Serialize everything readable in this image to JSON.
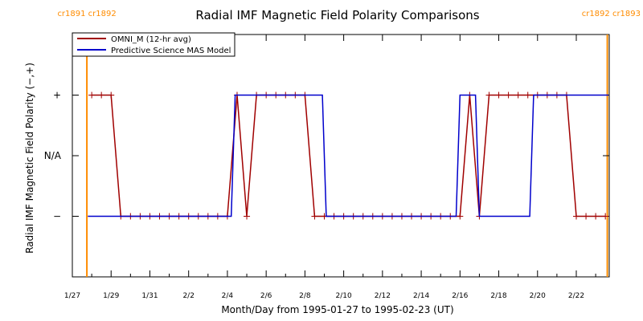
{
  "chart_data": {
    "type": "line",
    "title": "Radial IMF Magnetic Field Polarity Comparisons",
    "xlabel": "Month/Day from 1995-01-27 to 1995-02-23 (UT)",
    "ylabel": "Radial IMF Magnetic Field Polarity (−,+)",
    "x_unit": "days from 1995-01-27 00:00 UT",
    "xlim": [
      0,
      27.7
    ],
    "ylim": [
      -2,
      2
    ],
    "x_ticks": [
      {
        "x": 0,
        "label": "1/27"
      },
      {
        "x": 2,
        "label": "1/29"
      },
      {
        "x": 4,
        "label": "1/31"
      },
      {
        "x": 6,
        "label": "2/2"
      },
      {
        "x": 8,
        "label": "2/4"
      },
      {
        "x": 10,
        "label": "2/6"
      },
      {
        "x": 12,
        "label": "2/8"
      },
      {
        "x": 14,
        "label": "2/10"
      },
      {
        "x": 16,
        "label": "2/12"
      },
      {
        "x": 18,
        "label": "2/14"
      },
      {
        "x": 20,
        "label": "2/16"
      },
      {
        "x": 22,
        "label": "2/18"
      },
      {
        "x": 24,
        "label": "2/20"
      },
      {
        "x": 26,
        "label": "2/22"
      }
    ],
    "y_ticks": [
      {
        "y": 1,
        "label": "+"
      },
      {
        "y": 0,
        "label": "N/A"
      },
      {
        "y": -1,
        "label": "−"
      }
    ],
    "carrington_markers": [
      {
        "x": 0.75,
        "labels": [
          "cr1891",
          "cr1892"
        ],
        "color": "#ff8c00"
      },
      {
        "x": 27.6,
        "labels": [
          "cr1892",
          "cr1893"
        ],
        "color": "#ff8c00"
      }
    ],
    "legend": "top-left",
    "series": [
      {
        "name": "OMNI_M (12-hr avg)",
        "color": "#a00000",
        "markers": true,
        "x": [
          1.0,
          1.5,
          2.0,
          2.5,
          3.0,
          3.5,
          4.0,
          4.5,
          5.0,
          5.5,
          6.0,
          6.5,
          7.0,
          7.5,
          8.0,
          8.5,
          9.0,
          9.5,
          10.0,
          10.5,
          11.0,
          11.5,
          12.0,
          12.5,
          13.0,
          13.5,
          14.0,
          14.5,
          15.0,
          15.5,
          16.0,
          16.5,
          17.0,
          17.5,
          18.0,
          18.5,
          19.0,
          19.5,
          20.0,
          20.5,
          21.0,
          21.5,
          22.0,
          22.5,
          23.0,
          23.5,
          24.0,
          24.5,
          25.0,
          25.5,
          26.0,
          26.5,
          27.0,
          27.5
        ],
        "y": [
          1,
          1,
          1,
          -1,
          -1,
          -1,
          -1,
          -1,
          -1,
          -1,
          -1,
          -1,
          -1,
          -1,
          -1,
          1,
          -1,
          1,
          1,
          1,
          1,
          1,
          1,
          -1,
          -1,
          -1,
          -1,
          -1,
          -1,
          -1,
          -1,
          -1,
          -1,
          -1,
          -1,
          -1,
          -1,
          -1,
          -1,
          1,
          -1,
          1,
          1,
          1,
          1,
          1,
          1,
          1,
          1,
          1,
          -1,
          -1,
          -1,
          -1
        ]
      },
      {
        "name": "Predictive Science MAS Model",
        "color": "#0000cc",
        "markers": false,
        "x": [
          0.8,
          8.2,
          8.4,
          12.9,
          13.1,
          19.8,
          20.0,
          20.8,
          21.0,
          23.6,
          23.8,
          27.65
        ],
        "y": [
          -1,
          -1,
          1,
          1,
          -1,
          -1,
          1,
          1,
          -1,
          -1,
          1,
          1
        ]
      }
    ]
  }
}
